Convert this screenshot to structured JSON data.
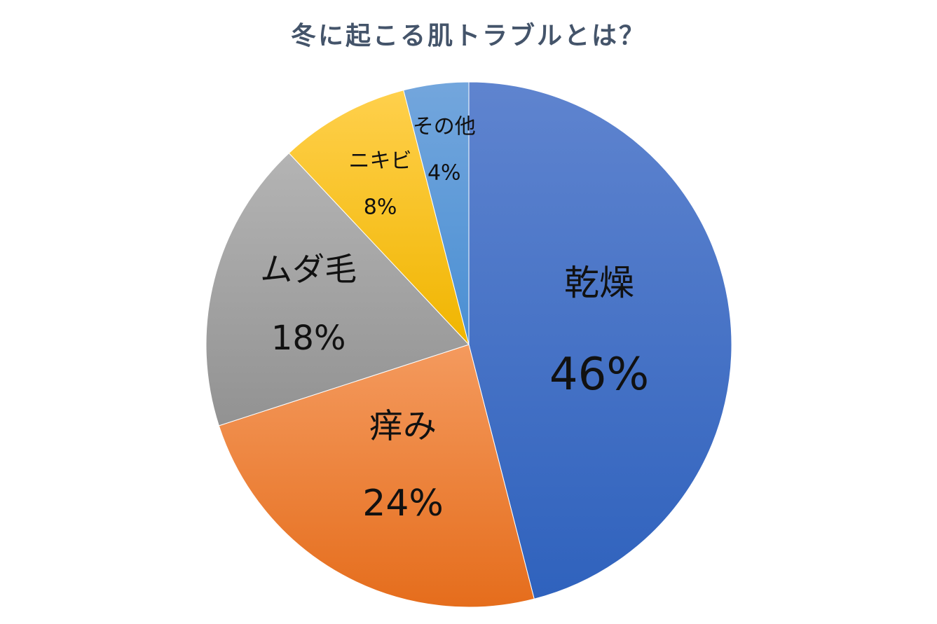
{
  "chart_data": {
    "type": "pie",
    "title": "冬に起こる肌トラブルとは？",
    "categories": [
      "乾燥",
      "痒み",
      "ムダ毛",
      "ニキビ",
      "その他"
    ],
    "values": [
      46,
      24,
      18,
      8,
      4
    ],
    "value_labels": [
      "46%",
      "24%",
      "18%",
      "8%",
      "4%"
    ],
    "colors": [
      "#4472c4",
      "#ed7d31",
      "#a5a5a5",
      "#ffc000",
      "#5b9bd5"
    ],
    "start": "12 o'clock, clockwise",
    "legend": "none"
  }
}
